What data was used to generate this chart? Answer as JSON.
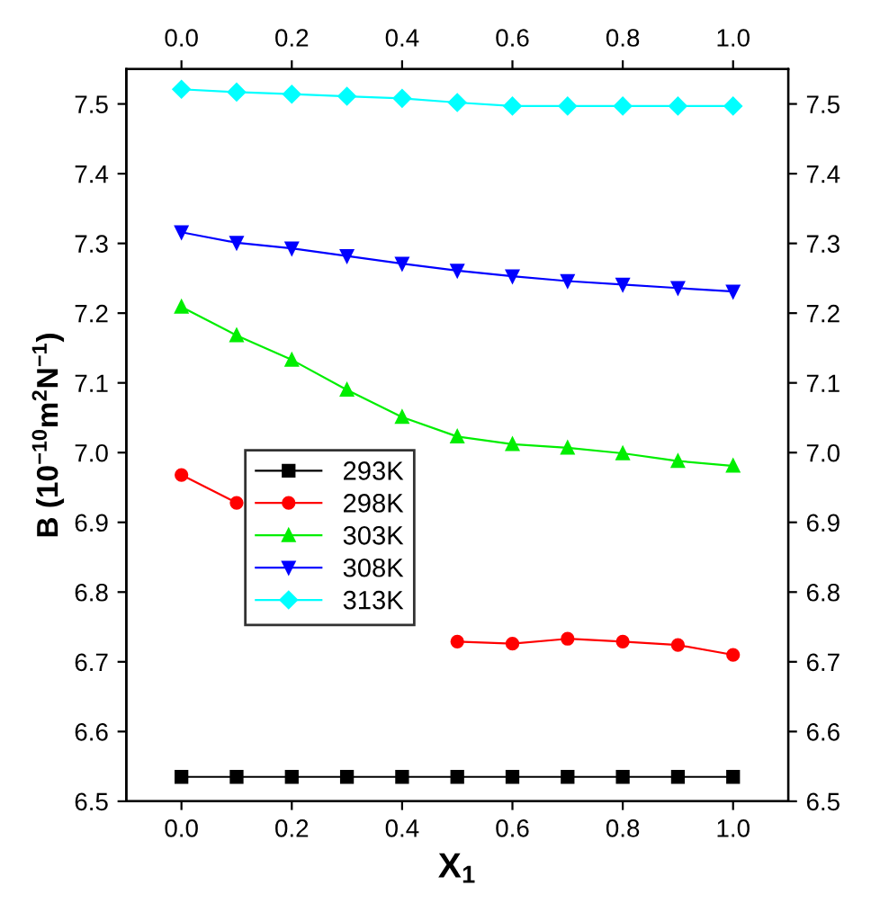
{
  "chart_data": {
    "type": "line",
    "xlabel": "X$_{1}$",
    "ylabel": "B (10$^{−10}$m$^{2}$N$^{−1}$)",
    "x": [
      0.0,
      0.1,
      0.2,
      0.3,
      0.4,
      0.5,
      0.6,
      0.7,
      0.8,
      0.9,
      1.0
    ],
    "series": [
      {
        "name": "293K",
        "color": "#000000",
        "marker": "square",
        "values": [
          6.535,
          6.535,
          6.535,
          6.535,
          6.535,
          6.535,
          6.535,
          6.535,
          6.535,
          6.535,
          6.535
        ]
      },
      {
        "name": "298K",
        "color": "#ff0000",
        "marker": "circle",
        "values": [
          6.968,
          6.928,
          null,
          null,
          null,
          6.729,
          6.726,
          6.733,
          6.729,
          6.724,
          6.71
        ]
      },
      {
        "name": "303K",
        "color": "#00ee00",
        "marker": "triangle",
        "values": [
          7.209,
          7.168,
          7.133,
          7.09,
          7.051,
          7.023,
          7.012,
          7.007,
          6.999,
          6.988,
          6.981
        ]
      },
      {
        "name": "308K",
        "color": "#0000ff",
        "marker": "triangle_down",
        "values": [
          7.316,
          7.301,
          7.293,
          7.282,
          7.271,
          7.261,
          7.253,
          7.246,
          7.241,
          7.236,
          7.231
        ]
      },
      {
        "name": "313K",
        "color": "#00ffff",
        "marker": "diamond",
        "values": [
          7.521,
          7.517,
          7.514,
          7.511,
          7.508,
          7.502,
          7.497,
          7.497,
          7.497,
          7.497,
          7.497
        ]
      }
    ],
    "xlim": [
      -0.1,
      1.1
    ],
    "xticks": [
      {
        "value": 0.0,
        "label": "0.0"
      },
      0.2,
      0.4,
      0.6,
      0.8,
      {
        "value": 1.0,
        "label": "1.0"
      }
    ],
    "x2lim": [
      -0.1,
      1.1
    ],
    "x2ticks": [
      {
        "value": 0.0,
        "label": "0.0"
      },
      0.2,
      0.4,
      0.6,
      0.8,
      {
        "value": 1.0,
        "label": "1.0"
      }
    ],
    "ylim": [
      6.5,
      7.55
    ],
    "yticks": [
      6.5,
      6.6,
      6.7,
      6.8,
      6.9,
      {
        "value": 7.0,
        "label": "7.0"
      },
      7.1,
      7.2,
      7.3,
      7.4,
      7.5
    ],
    "y2lim": [
      6.5,
      7.55
    ],
    "y2ticks": [
      6.5,
      6.6,
      6.7,
      6.8,
      6.9,
      {
        "value": 7.0,
        "label": "7.0"
      },
      7.1,
      7.2,
      7.3,
      7.4,
      7.5
    ],
    "legend": "center left",
    "grid": false,
    "line_style": "solid"
  }
}
